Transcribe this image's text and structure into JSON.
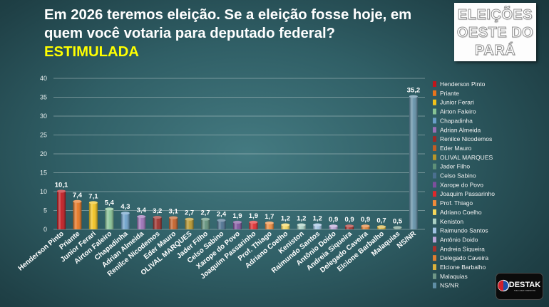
{
  "header": {
    "title_lines": [
      "Em 2026 teremos eleição. Se a eleição fosse hoje, em",
      "quem você votaria para deputado federal?"
    ],
    "subtitle": "ESTIMULADA"
  },
  "logo_top": {
    "lines": [
      "ELEIÇÕES",
      "OESTE DO",
      "PARÁ"
    ]
  },
  "logo_bottom": {
    "name": "DESTAK",
    "tagline": "PUBLICIDADE E MARKETING"
  },
  "theme": {
    "title_color": "#ffffff",
    "subtitle_color": "#ffff00"
  },
  "chart_data": {
    "type": "bar",
    "categories": [
      "Henderson Pinto",
      "Priante",
      "Junior Ferari",
      "Airton Faleiro",
      "Chapadinha",
      "Adrian Almeida",
      "Renilce Nicodemos",
      "Eder Mauro",
      "OLIVAL MARQUES",
      "Jader Filho",
      "Celso Sabino",
      "Xarope do Povo",
      "Joaquim Passarinho",
      "Prof. Thiago",
      "Adriano Coelho",
      "Keniston",
      "Raimundo Santos",
      "Antônio Doido",
      "Andreia Siqueira",
      "Delegado Caveira",
      "Elcione Barbalho",
      "Malaquias",
      "NS/NR"
    ],
    "values": [
      10.1,
      7.4,
      7.1,
      5.4,
      4.3,
      3.4,
      3.2,
      3.1,
      2.7,
      2.7,
      2.4,
      1.9,
      1.9,
      1.7,
      1.2,
      1.2,
      1.2,
      0.9,
      0.9,
      0.9,
      0.7,
      0.5,
      35.2
    ],
    "value_labels": [
      "10,1",
      "7,4",
      "7,1",
      "5,4",
      "4,3",
      "3,4",
      "3,2",
      "3,1",
      "2,7",
      "2,7",
      "2,4",
      "1,9",
      "1,9",
      "1,7",
      "1,2",
      "1,2",
      "1,2",
      "0,9",
      "0,9",
      "0,9",
      "0,7",
      "0,5",
      "35,2"
    ],
    "colors": [
      "#c0151b",
      "#e8731c",
      "#f2c21a",
      "#86c294",
      "#6a9fc9",
      "#9a6fb5",
      "#9b2a26",
      "#c45e24",
      "#b8962a",
      "#5e8f78",
      "#4a6f8f",
      "#7d4f9c",
      "#e0282b",
      "#f08a3a",
      "#f6d75a",
      "#a9d0c4",
      "#9fc2e2",
      "#b9a3d6",
      "#a8302c",
      "#e07f31",
      "#d9b23c",
      "#6e9686",
      "#5f8ea6"
    ],
    "yticks": [
      0,
      5,
      10,
      15,
      20,
      25,
      30,
      35,
      40
    ],
    "ylim": [
      0,
      40
    ],
    "grid": true,
    "legend_position": "right"
  }
}
